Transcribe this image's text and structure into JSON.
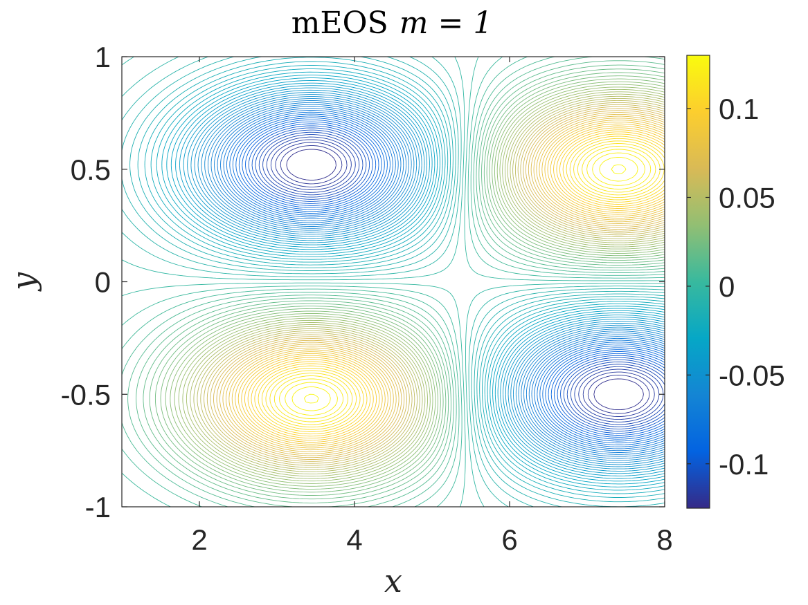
{
  "chart_data": {
    "type": "contour",
    "title": "mEOS m = 1",
    "title_parts": {
      "text": "mEOS",
      "math": "m = 1"
    },
    "xlabel": "x",
    "ylabel": "y",
    "xlim": [
      1,
      8
    ],
    "ylim": [
      -1,
      1
    ],
    "xticks": [
      2,
      4,
      6,
      8
    ],
    "xtick_labels": [
      "2",
      "4",
      "6",
      "8"
    ],
    "yticks": [
      -1,
      -0.5,
      0,
      0.5,
      1
    ],
    "ytick_labels": [
      "-1",
      "-0.5",
      "0",
      "0.5",
      "1"
    ],
    "colorbar": {
      "limits": [
        -0.125,
        0.13
      ],
      "ticks": [
        -0.1,
        -0.05,
        0,
        0.05,
        0.1
      ],
      "tick_labels": [
        "-0.1",
        "-0.05",
        "0",
        "0.05",
        "0.1"
      ],
      "colormap": "parula"
    },
    "extrema": [
      {
        "kind": "min",
        "x": 3.45,
        "y": 0.52,
        "value": -0.12
      },
      {
        "kind": "max",
        "x": 7.4,
        "y": 0.5,
        "value": 0.125
      },
      {
        "kind": "max",
        "x": 3.45,
        "y": -0.52,
        "value": 0.125
      },
      {
        "kind": "min",
        "x": 7.4,
        "y": -0.5,
        "value": -0.12
      }
    ],
    "contour_levels": 90,
    "grid": false
  },
  "colors": {
    "axes": "#262626",
    "parula": [
      "#352a87",
      "#0363e1",
      "#1485d4",
      "#06a7c6",
      "#38b99e",
      "#92bf73",
      "#d9ba56",
      "#fcce2e",
      "#f9fb0e"
    ]
  }
}
